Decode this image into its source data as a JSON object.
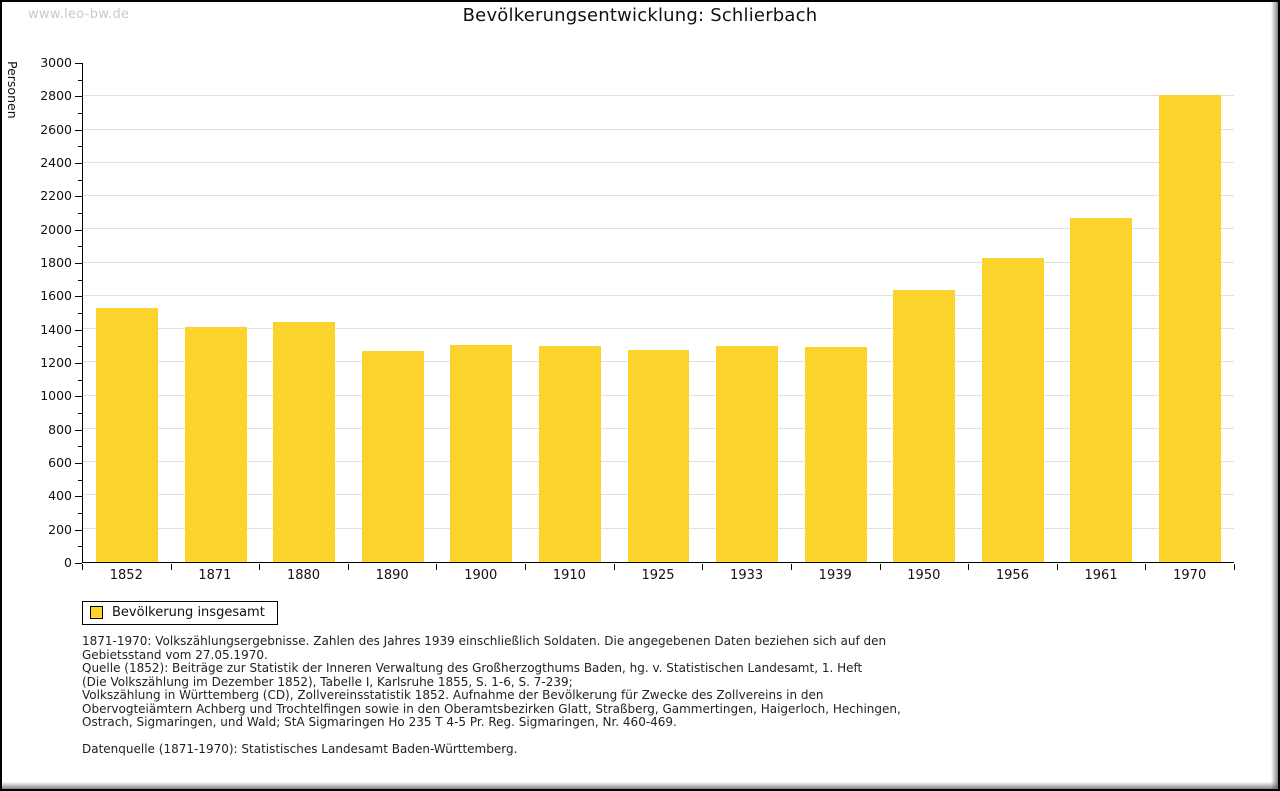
{
  "watermark": "www.leo-bw.de",
  "title": "Bevölkerungsentwicklung: Schlierbach",
  "chart_data": {
    "type": "bar",
    "title": "Bevölkerungsentwicklung: Schlierbach",
    "xlabel": "",
    "ylabel": "Personen",
    "categories": [
      "1852",
      "1871",
      "1880",
      "1890",
      "1900",
      "1910",
      "1925",
      "1933",
      "1939",
      "1950",
      "1956",
      "1961",
      "1970"
    ],
    "series": [
      {
        "name": "Bevölkerung insgesamt",
        "values": [
          1530,
          1410,
          1440,
          1270,
          1305,
          1300,
          1275,
          1300,
          1290,
          1635,
          1830,
          2070,
          2810
        ]
      }
    ],
    "ylim": [
      0,
      3000
    ],
    "ytick_step": 200,
    "minor_tick_step": 100,
    "grid": true,
    "legend_position": "bottom-left",
    "bar_color": "#fcd32d"
  },
  "legend": {
    "label": "Bevölkerung insgesamt",
    "swatch_color": "#fcd32d"
  },
  "footnotes": {
    "paragraphs": [
      [
        "1871-1970: Volkszählungsergebnisse. Zahlen des Jahres 1939 einschließlich Soldaten. Die angegebenen Daten beziehen sich auf den",
        "Gebietsstand vom 27.05.1970.",
        "Quelle (1852): Beiträge zur Statistik der Inneren Verwaltung des Großherzogthums Baden, hg. v. Statistischen Landesamt, 1. Heft",
        "(Die Volkszählung im Dezember 1852), Tabelle I, Karlsruhe 1855, S. 1-6, S. 7-239;",
        "Volkszählung in Württemberg (CD), Zollvereinsstatistik 1852. Aufnahme der Bevölkerung für Zwecke des Zollvereins in den",
        "Obervogteiämtern Achberg und Trochtelfingen sowie in den Oberamtsbezirken Glatt, Straßberg, Gammertingen, Haigerloch, Hechingen,",
        "Ostrach, Sigmaringen, und Wald; StA Sigmaringen Ho 235 T 4-5 Pr. Reg. Sigmaringen, Nr. 460-469."
      ],
      [
        "Datenquelle (1871-1970): Statistisches Landesamt Baden-Württemberg."
      ]
    ]
  },
  "colors": {
    "bar": "#fcd32d",
    "gridline": "#e0e0e0",
    "axis": "#000000",
    "watermark": "#c9c9c9",
    "background": "#ffffff"
  }
}
